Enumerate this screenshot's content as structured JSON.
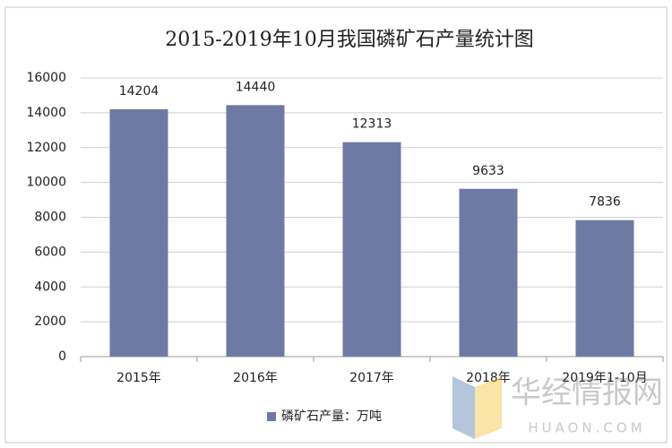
{
  "chart_data": {
    "type": "bar",
    "title": "2015-2019年10月我国磷矿石产量统计图",
    "categories": [
      "2015年",
      "2016年",
      "2017年",
      "2018年",
      "2019年1-10月"
    ],
    "series": [
      {
        "name": "磷矿石产量：万吨",
        "color": "#6f7aa3",
        "values": [
          14204,
          14440,
          12313,
          9633,
          7836
        ]
      }
    ],
    "ylim": [
      0,
      16000
    ],
    "yticks": [
      0,
      2000,
      4000,
      6000,
      8000,
      10000,
      12000,
      14000,
      16000
    ],
    "grid": true,
    "legend": "bottom",
    "data_labels": true
  },
  "watermark": {
    "text": "华经情报网",
    "url": "HUAON.COM"
  }
}
